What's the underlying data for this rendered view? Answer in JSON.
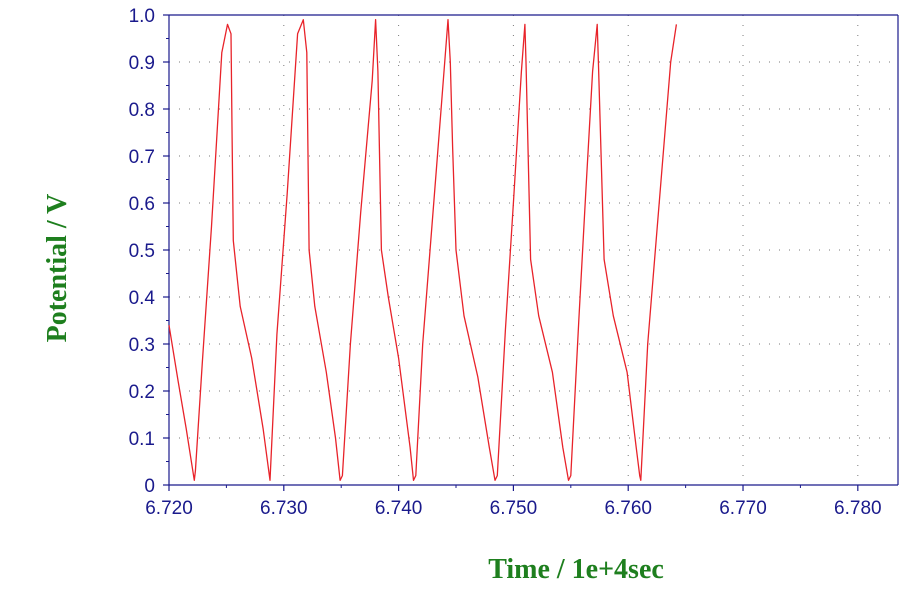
{
  "chart_data": {
    "type": "line",
    "title": "",
    "xlabel": "Time / 1e+4sec",
    "ylabel": "Potential / V",
    "xlim": [
      6.72,
      6.7835
    ],
    "ylim": [
      0,
      1.0
    ],
    "x_ticks": [
      6.72,
      6.73,
      6.74,
      6.75,
      6.76,
      6.77,
      6.78
    ],
    "x_tick_labels": [
      "6.720",
      "6.730",
      "6.740",
      "6.750",
      "6.760",
      "6.770",
      "6.780"
    ],
    "y_ticks": [
      0,
      0.1,
      0.2,
      0.3,
      0.4,
      0.5,
      0.6,
      0.7,
      0.8,
      0.9,
      1.0
    ],
    "y_tick_labels": [
      "0",
      "0.1",
      "0.2",
      "0.3",
      "0.4",
      "0.5",
      "0.6",
      "0.7",
      "0.8",
      "0.9",
      "1.0"
    ],
    "grid": "dotted",
    "series": [
      {
        "color": "#e8232a",
        "x": [
          6.72,
          6.7208,
          6.7215,
          6.7222,
          6.7223,
          6.7229,
          6.7237,
          6.7246,
          6.7251,
          6.7254,
          6.7255,
          6.7256,
          6.7262,
          6.7272,
          6.7282,
          6.7288,
          6.7294,
          6.7303,
          6.7312,
          6.7317,
          6.732,
          6.7321,
          6.7322,
          6.7327,
          6.7337,
          6.7345,
          6.7349,
          6.7351,
          6.7358,
          6.7367,
          6.7377,
          6.738,
          6.7382,
          6.7385,
          6.7391,
          6.74,
          6.741,
          6.7413,
          6.7415,
          6.7421,
          6.743,
          6.7437,
          6.7443,
          6.7445,
          6.7447,
          6.745,
          6.7457,
          6.7469,
          6.7479,
          6.7484,
          6.7486,
          6.7493,
          6.75,
          6.7507,
          6.751,
          6.7511,
          6.7515,
          6.7522,
          6.7534,
          6.7543,
          6.7548,
          6.755,
          6.7557,
          6.7563,
          6.7569,
          6.7573,
          6.7574,
          6.7579,
          6.7587,
          6.7599,
          6.7607,
          6.761,
          6.7611,
          6.7617,
          6.7627,
          6.7637,
          6.7642
        ],
        "y": [
          0.34,
          0.22,
          0.12,
          0.01,
          0.03,
          0.26,
          0.55,
          0.92,
          0.98,
          0.96,
          0.74,
          0.52,
          0.38,
          0.27,
          0.12,
          0.01,
          0.32,
          0.62,
          0.96,
          0.99,
          0.92,
          0.72,
          0.5,
          0.38,
          0.24,
          0.1,
          0.01,
          0.02,
          0.3,
          0.58,
          0.86,
          0.99,
          0.88,
          0.5,
          0.4,
          0.27,
          0.08,
          0.01,
          0.02,
          0.3,
          0.58,
          0.8,
          0.99,
          0.9,
          0.72,
          0.5,
          0.36,
          0.23,
          0.08,
          0.01,
          0.02,
          0.33,
          0.6,
          0.88,
          0.98,
          0.9,
          0.48,
          0.36,
          0.24,
          0.08,
          0.01,
          0.02,
          0.35,
          0.62,
          0.88,
          0.98,
          0.9,
          0.48,
          0.36,
          0.24,
          0.08,
          0.02,
          0.01,
          0.3,
          0.6,
          0.9,
          0.98
        ]
      }
    ]
  }
}
